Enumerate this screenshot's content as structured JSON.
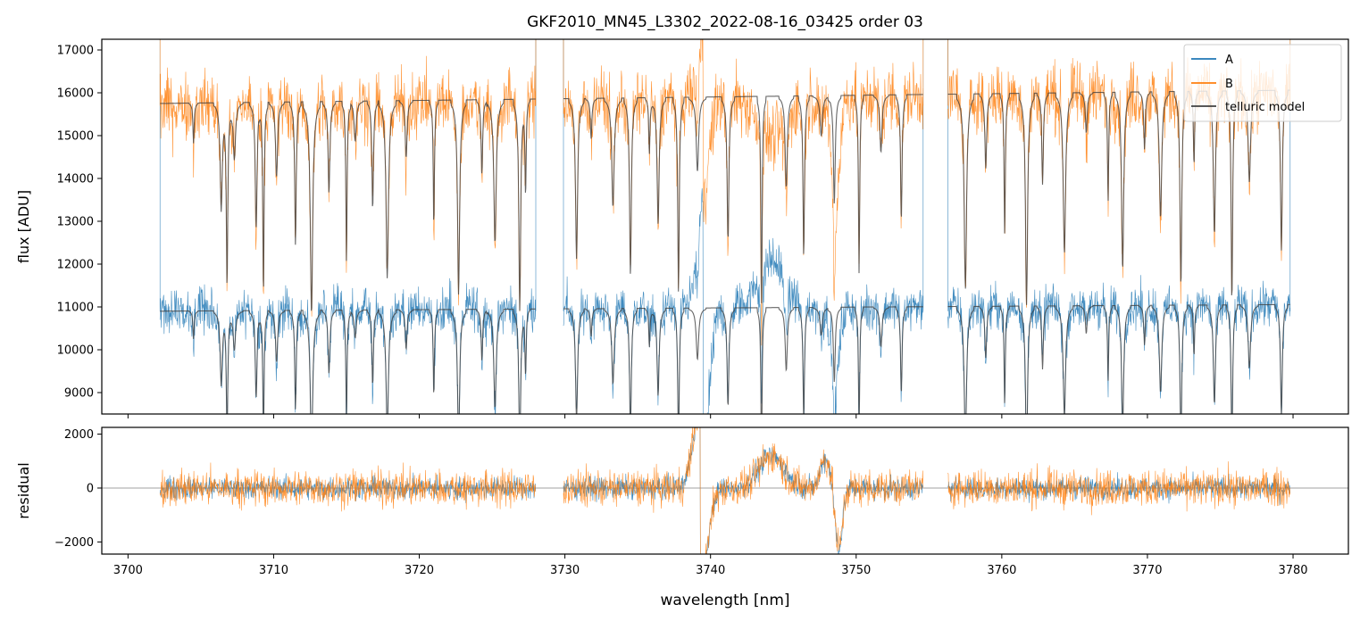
{
  "chart_data": {
    "title": "GKF2010_MN45_L3302_2022-08-16_03425  order 03",
    "xlabel": "wavelength [nm]",
    "xlim": [
      3698.2,
      3783.8
    ],
    "x_ticks": [
      3700,
      3710,
      3720,
      3730,
      3740,
      3750,
      3760,
      3770,
      3780
    ],
    "legend": {
      "placement": "top-right",
      "entries": [
        {
          "label": "A",
          "color": "#1f77b4"
        },
        {
          "label": "B",
          "color": "#ff7f0e"
        },
        {
          "label": "telluric model",
          "color": "#404040"
        }
      ]
    },
    "segments": [
      [
        3702.2,
        3728.0
      ],
      [
        3729.9,
        3754.6
      ],
      [
        3756.3,
        3779.8
      ]
    ],
    "panels": [
      {
        "name": "flux",
        "type": "line",
        "ylabel": "flux [ADU]",
        "ylim": [
          8500,
          17250
        ],
        "y_ticks": [
          9000,
          10000,
          11000,
          12000,
          13000,
          14000,
          15000,
          16000,
          17000
        ],
        "series": [
          {
            "name": "A",
            "color": "#1f77b4",
            "continuum": 10900,
            "noise": 260
          },
          {
            "name": "B",
            "color": "#ff7f0e",
            "continuum": 15700,
            "noise": 380
          }
        ],
        "telluric_model_levels": {
          "A": 10900,
          "B": 15750
        },
        "absorption_lines_nm": [
          3704.5,
          3706.4,
          3706.8,
          3707.3,
          3708.8,
          3709.3,
          3710.2,
          3711.5,
          3712.6,
          3713.8,
          3715.0,
          3715.6,
          3716.8,
          3717.8,
          3719.1,
          3721.0,
          3722.7,
          3724.3,
          3725.2,
          3726.9,
          3727.3,
          3730.8,
          3731.8,
          3733.3,
          3734.5,
          3735.8,
          3736.4,
          3737.8,
          3739.1,
          3741.2,
          3743.5,
          3745.2,
          3746.4,
          3747.6,
          3748.5,
          3750.2,
          3751.7,
          3753.1,
          3757.5,
          3758.9,
          3760.2,
          3761.7,
          3762.8,
          3764.3,
          3765.8,
          3767.3,
          3768.3,
          3769.8,
          3770.9,
          3772.3,
          3773.2,
          3774.6,
          3775.8,
          3777.0,
          3779.2
        ]
      },
      {
        "name": "residual",
        "type": "line",
        "ylabel": "residual",
        "ylim": [
          -2450,
          2250
        ],
        "y_ticks": [
          -2000,
          0,
          2000
        ],
        "zero_line": true,
        "series": [
          {
            "name": "A",
            "color": "#1f77b4",
            "noise": 200
          },
          {
            "name": "B",
            "color": "#ff7f0e",
            "noise": 330
          }
        ]
      }
    ]
  }
}
